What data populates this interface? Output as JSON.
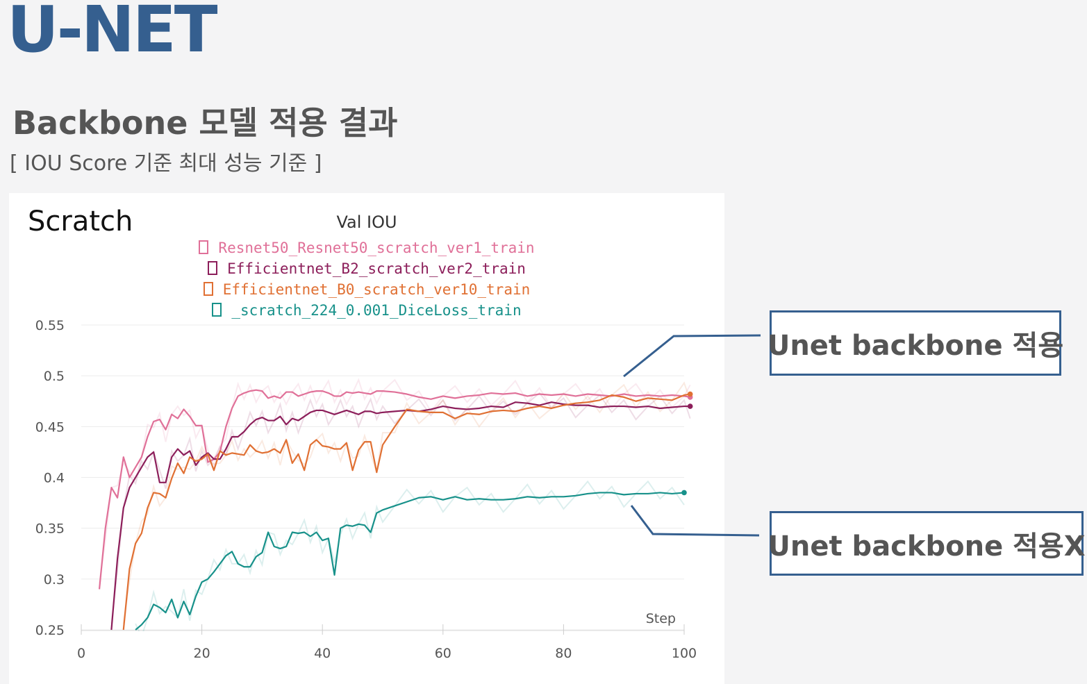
{
  "header": {
    "title": "U-NET",
    "subtitle": "Backbone 모델 적용 결과",
    "note": "[ IOU Score 기준 최대 성능 기준 ]"
  },
  "panel": {
    "label": "Scratch"
  },
  "callouts": {
    "top": "Unet backbone 적용",
    "bottom": "Unet backbone 적용X",
    "border_color": "#355f8f"
  },
  "chart_data": {
    "type": "line",
    "title": "Val IOU",
    "xlabel": "Step",
    "ylabel": "",
    "xlim": [
      0,
      100
    ],
    "ylim": [
      0.25,
      0.55
    ],
    "x_ticks": [
      0,
      20,
      40,
      60,
      80,
      100
    ],
    "y_ticks": [
      0.25,
      0.3,
      0.35,
      0.4,
      0.45,
      0.5,
      0.55
    ],
    "y_tick_labels": [
      "0.25",
      "0.3",
      "0.35",
      "0.4",
      "0.45",
      "0.5",
      "0.55"
    ],
    "grid": true,
    "legend_position": "top-center",
    "series": [
      {
        "name": "Resnet50_Resnet50_scratch_ver1_train",
        "color": "#e07098",
        "x": [
          3,
          4,
          5,
          6,
          7,
          8,
          9,
          10,
          11,
          12,
          13,
          14,
          15,
          16,
          17,
          18,
          19,
          20,
          21,
          22,
          23,
          24,
          25,
          26,
          27,
          28,
          29,
          30,
          31,
          32,
          33,
          34,
          35,
          36,
          37,
          38,
          39,
          40,
          41,
          42,
          43,
          44,
          45,
          46,
          47,
          48,
          49,
          50,
          52,
          54,
          56,
          58,
          60,
          62,
          64,
          66,
          68,
          70,
          72,
          74,
          76,
          78,
          80,
          82,
          84,
          86,
          88,
          90,
          92,
          94,
          96,
          98,
          100,
          101
        ],
        "values": [
          0.29,
          0.35,
          0.39,
          0.38,
          0.42,
          0.4,
          0.41,
          0.42,
          0.44,
          0.455,
          0.457,
          0.447,
          0.462,
          0.458,
          0.467,
          0.46,
          0.451,
          0.451,
          0.415,
          0.418,
          0.425,
          0.45,
          0.468,
          0.48,
          0.483,
          0.485,
          0.486,
          0.485,
          0.478,
          0.48,
          0.478,
          0.484,
          0.484,
          0.48,
          0.482,
          0.484,
          0.485,
          0.485,
          0.483,
          0.48,
          0.48,
          0.484,
          0.483,
          0.484,
          0.483,
          0.482,
          0.485,
          0.485,
          0.484,
          0.482,
          0.479,
          0.477,
          0.48,
          0.478,
          0.48,
          0.481,
          0.483,
          0.482,
          0.483,
          0.48,
          0.482,
          0.481,
          0.482,
          0.48,
          0.482,
          0.481,
          0.48,
          0.482,
          0.48,
          0.481,
          0.48,
          0.481,
          0.48,
          0.479
        ]
      },
      {
        "name": "Efficientnet_B2_scratch_ver2_train",
        "color": "#8c1e5a",
        "x": [
          5,
          6,
          7,
          8,
          9,
          10,
          11,
          12,
          13,
          14,
          15,
          16,
          17,
          18,
          19,
          20,
          21,
          22,
          23,
          24,
          25,
          26,
          27,
          28,
          29,
          30,
          31,
          32,
          33,
          34,
          35,
          36,
          37,
          38,
          39,
          40,
          41,
          42,
          43,
          44,
          45,
          46,
          47,
          48,
          49,
          50,
          52,
          54,
          56,
          58,
          60,
          62,
          64,
          66,
          68,
          70,
          72,
          74,
          76,
          78,
          80,
          82,
          84,
          86,
          88,
          90,
          92,
          94,
          96,
          98,
          100,
          101
        ],
        "values": [
          0.25,
          0.32,
          0.37,
          0.39,
          0.4,
          0.41,
          0.42,
          0.425,
          0.395,
          0.395,
          0.42,
          0.428,
          0.422,
          0.426,
          0.412,
          0.42,
          0.424,
          0.418,
          0.418,
          0.428,
          0.44,
          0.44,
          0.445,
          0.452,
          0.457,
          0.459,
          0.456,
          0.456,
          0.46,
          0.452,
          0.458,
          0.456,
          0.46,
          0.464,
          0.466,
          0.466,
          0.464,
          0.462,
          0.464,
          0.466,
          0.464,
          0.462,
          0.465,
          0.465,
          0.463,
          0.464,
          0.465,
          0.466,
          0.465,
          0.467,
          0.47,
          0.468,
          0.467,
          0.468,
          0.47,
          0.469,
          0.474,
          0.473,
          0.471,
          0.474,
          0.472,
          0.471,
          0.471,
          0.469,
          0.47,
          0.47,
          0.469,
          0.47,
          0.468,
          0.469,
          0.47,
          0.47
        ]
      },
      {
        "name": "Efficientnet_B0_scratch_ver10_train",
        "color": "#e07033",
        "x": [
          7,
          8,
          9,
          10,
          11,
          12,
          13,
          14,
          15,
          16,
          17,
          18,
          19,
          20,
          21,
          22,
          23,
          24,
          25,
          26,
          27,
          28,
          29,
          30,
          31,
          32,
          33,
          34,
          35,
          36,
          37,
          38,
          39,
          40,
          41,
          42,
          43,
          44,
          45,
          46,
          47,
          48,
          49,
          50,
          52,
          54,
          56,
          58,
          60,
          62,
          64,
          66,
          68,
          70,
          72,
          74,
          76,
          78,
          80,
          82,
          84,
          86,
          88,
          90,
          92,
          94,
          96,
          98,
          100,
          101
        ],
        "values": [
          0.25,
          0.31,
          0.335,
          0.345,
          0.37,
          0.385,
          0.384,
          0.38,
          0.399,
          0.414,
          0.404,
          0.42,
          0.416,
          0.418,
          0.423,
          0.407,
          0.426,
          0.422,
          0.424,
          0.423,
          0.422,
          0.432,
          0.426,
          0.424,
          0.425,
          0.428,
          0.424,
          0.437,
          0.414,
          0.423,
          0.407,
          0.432,
          0.437,
          0.431,
          0.43,
          0.428,
          0.428,
          0.434,
          0.407,
          0.427,
          0.435,
          0.435,
          0.405,
          0.432,
          0.45,
          0.467,
          0.465,
          0.464,
          0.464,
          0.458,
          0.463,
          0.462,
          0.465,
          0.466,
          0.465,
          0.468,
          0.47,
          0.468,
          0.471,
          0.473,
          0.474,
          0.476,
          0.481,
          0.479,
          0.475,
          0.478,
          0.477,
          0.476,
          0.481,
          0.482
        ]
      },
      {
        "name": "_scratch_224_0.001_DiceLoss_train",
        "color": "#17918a",
        "x": [
          9,
          10,
          11,
          12,
          13,
          14,
          15,
          16,
          17,
          18,
          19,
          20,
          21,
          22,
          23,
          24,
          25,
          26,
          27,
          28,
          29,
          30,
          31,
          32,
          33,
          34,
          35,
          36,
          37,
          38,
          39,
          40,
          41,
          42,
          43,
          44,
          45,
          46,
          47,
          48,
          49,
          50,
          52,
          54,
          56,
          58,
          60,
          62,
          64,
          66,
          68,
          70,
          72,
          74,
          76,
          78,
          80,
          82,
          84,
          86,
          88,
          90,
          92,
          94,
          96,
          98,
          100
        ],
        "values": [
          0.25,
          0.255,
          0.262,
          0.275,
          0.272,
          0.267,
          0.28,
          0.262,
          0.278,
          0.265,
          0.283,
          0.297,
          0.3,
          0.307,
          0.315,
          0.323,
          0.327,
          0.315,
          0.312,
          0.312,
          0.322,
          0.326,
          0.346,
          0.332,
          0.33,
          0.332,
          0.346,
          0.345,
          0.346,
          0.342,
          0.346,
          0.338,
          0.34,
          0.304,
          0.35,
          0.353,
          0.352,
          0.354,
          0.353,
          0.346,
          0.365,
          0.368,
          0.372,
          0.376,
          0.38,
          0.381,
          0.378,
          0.381,
          0.378,
          0.379,
          0.378,
          0.378,
          0.379,
          0.381,
          0.38,
          0.381,
          0.381,
          0.382,
          0.384,
          0.385,
          0.385,
          0.383,
          0.384,
          0.384,
          0.385,
          0.384,
          0.385
        ]
      }
    ]
  }
}
